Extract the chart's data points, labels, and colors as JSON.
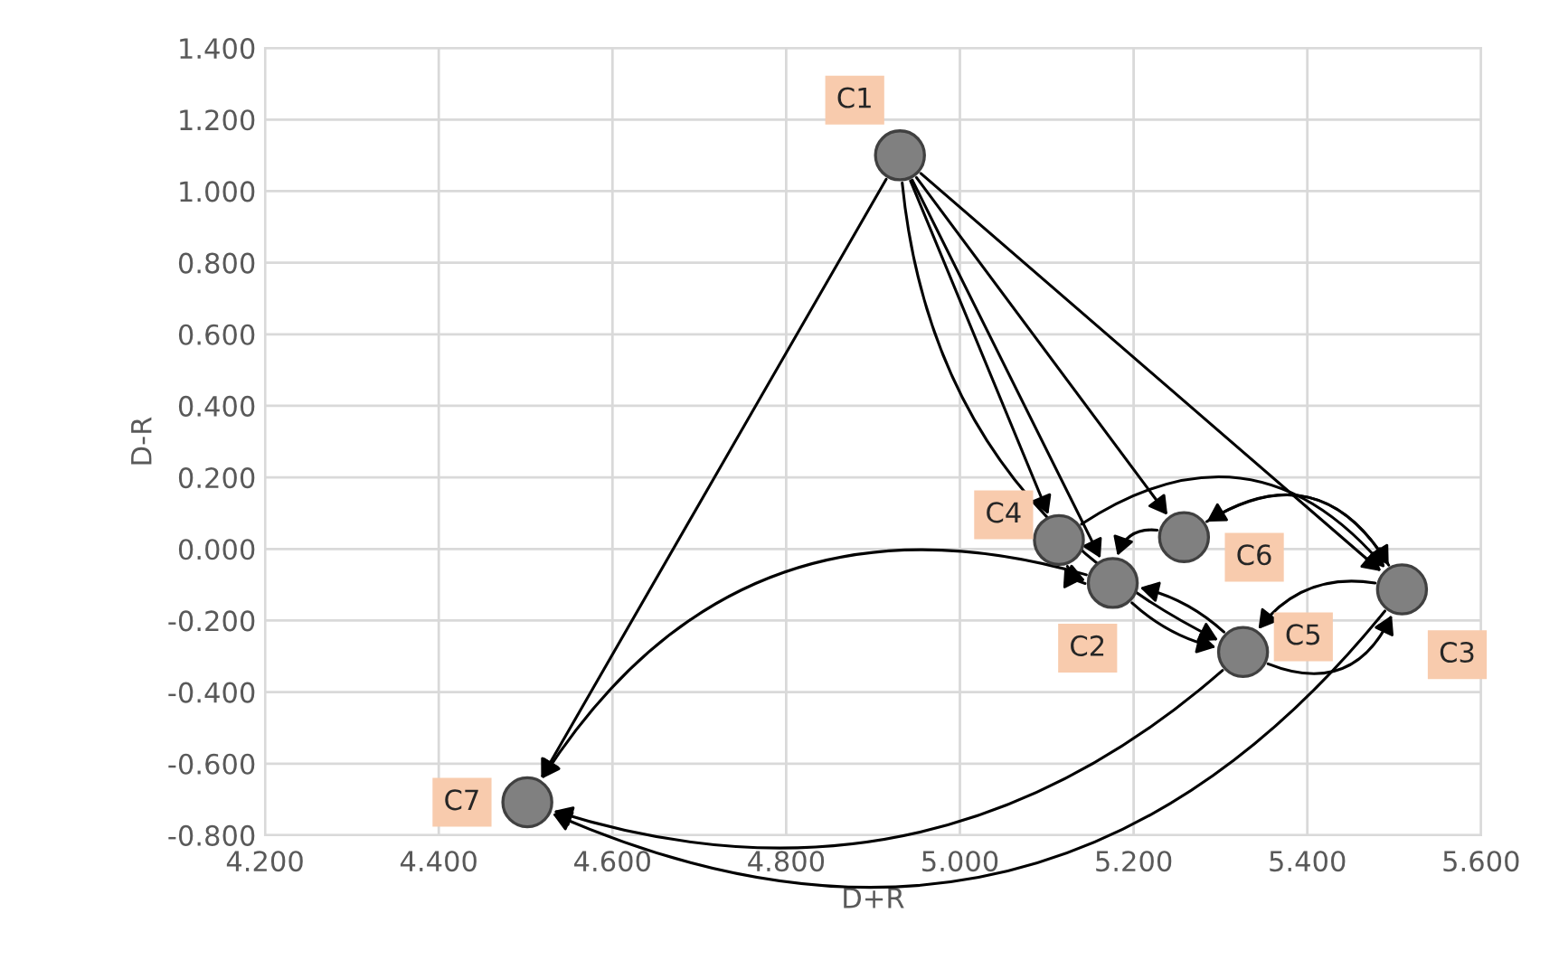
{
  "chart_data": {
    "type": "scatter",
    "xlabel": "D+R",
    "ylabel": "D-R",
    "x": [
      4.931,
      5.176,
      5.509,
      5.114,
      5.326,
      5.258,
      4.502
    ],
    "series": [
      {
        "color": "#808080",
        "values": [
          1.1,
          -0.095,
          -0.113,
          0.025,
          -0.288,
          0.033,
          -0.708
        ]
      }
    ],
    "annotations": [
      {
        "text": "C1",
        "x": 4.931,
        "y": 1.1
      },
      {
        "text": "C2",
        "x": 5.176,
        "y": -0.095
      },
      {
        "text": "C3",
        "x": 5.509,
        "y": -0.113
      },
      {
        "text": "C4",
        "x": 5.114,
        "y": 0.025
      },
      {
        "text": "C5",
        "x": 5.326,
        "y": -0.288
      },
      {
        "text": "C6",
        "x": 5.258,
        "y": 0.033
      },
      {
        "text": "C7",
        "x": 4.502,
        "y": -0.708
      }
    ],
    "xlim": [
      4.2,
      5.6
    ],
    "ylim": [
      -0.8,
      1.4
    ],
    "xticks": [
      {
        "value": 4.2,
        "label": "4.200"
      },
      {
        "value": 4.4,
        "label": "4.400"
      },
      {
        "value": 4.6,
        "label": "4.600"
      },
      {
        "value": 4.8,
        "label": "4.800"
      },
      {
        "value": 5.0,
        "label": "5.000"
      },
      {
        "value": 5.2,
        "label": "5.200"
      },
      {
        "value": 5.4,
        "label": "5.400"
      },
      {
        "value": 5.6,
        "label": "5.600"
      }
    ],
    "yticks": [
      {
        "value": 1.4,
        "label": "1.400"
      },
      {
        "value": 1.2,
        "label": "1.200"
      },
      {
        "value": 1.0,
        "label": "1.000"
      },
      {
        "value": 0.8,
        "label": "0.800"
      },
      {
        "value": 0.6,
        "label": "0.600"
      },
      {
        "value": 0.4,
        "label": "0.400"
      },
      {
        "value": 0.2,
        "label": "0.200"
      },
      {
        "value": 0.0,
        "label": "0.000"
      },
      {
        "value": -0.2,
        "label": "-0.200"
      },
      {
        "value": -0.4,
        "label": "-0.400"
      },
      {
        "value": -0.6,
        "label": "-0.600"
      },
      {
        "value": -0.8,
        "label": "-0.800"
      }
    ],
    "grid": true,
    "marker": "circle"
  }
}
